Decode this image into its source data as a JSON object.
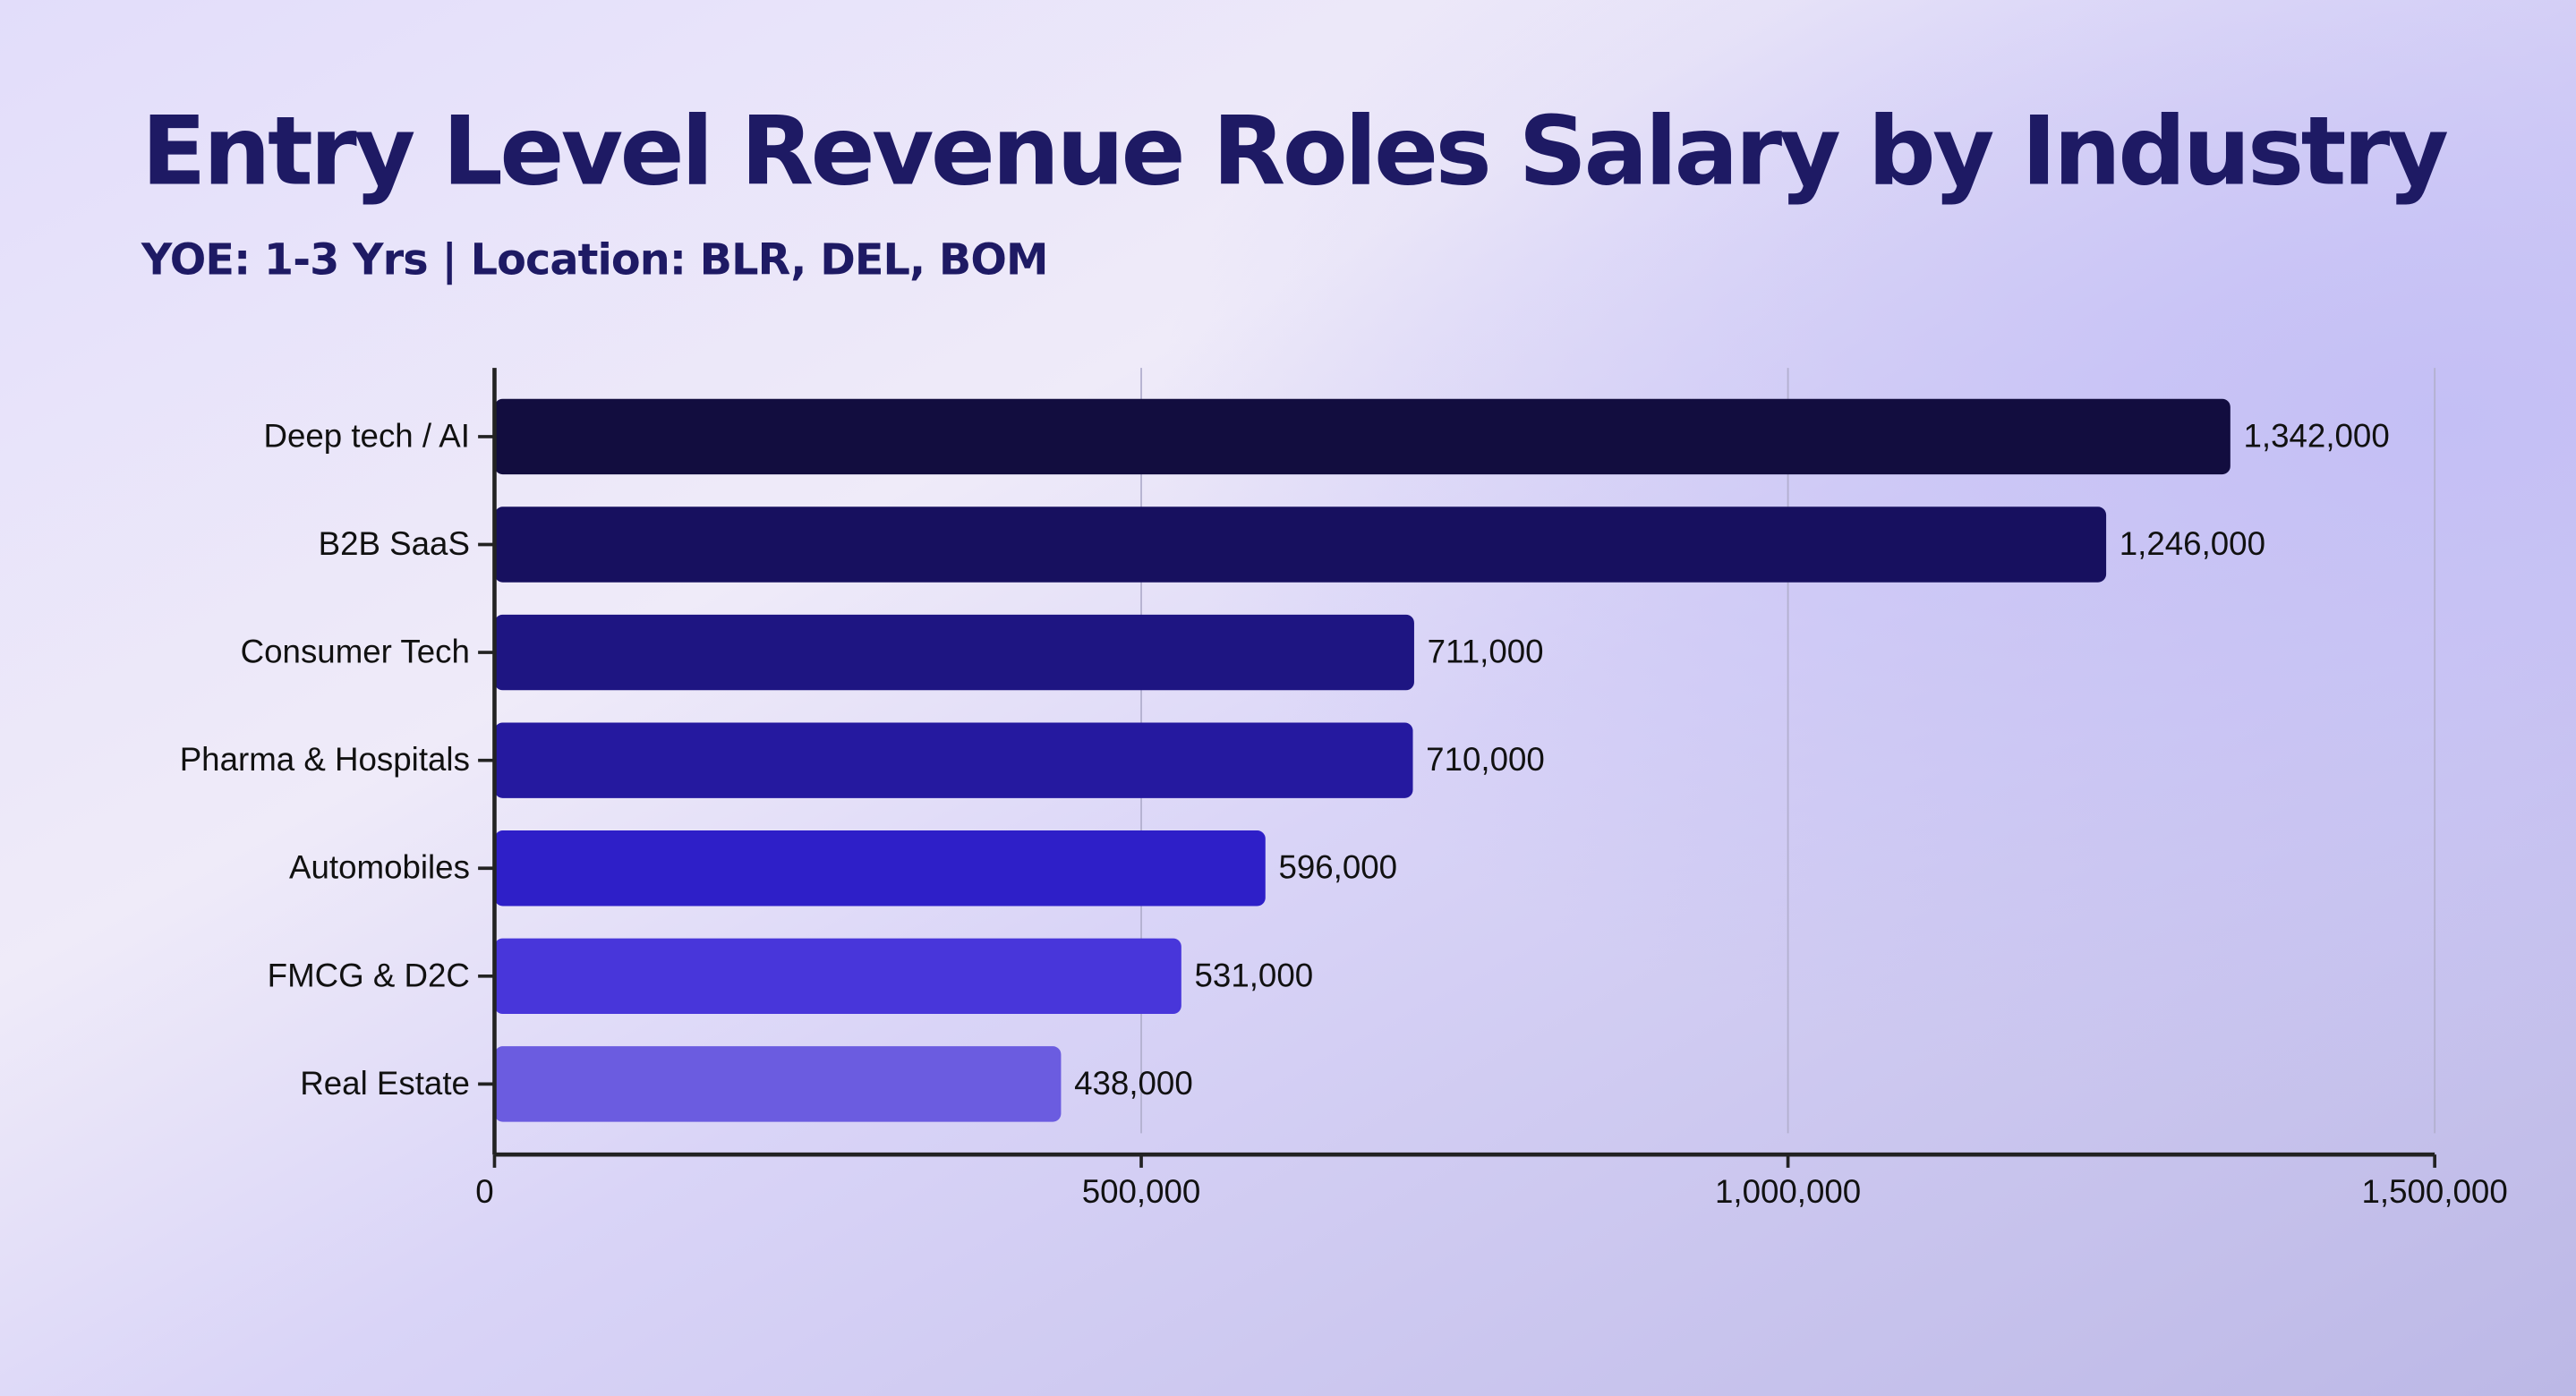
{
  "chart_data": {
    "type": "hbar",
    "title": "Entry Level Revenue Roles Salary by Industry",
    "subtitle": "YOE: 1-3 Yrs | Location: BLR, DEL, BOM",
    "categories": [
      "Deep tech / AI",
      "B2B SaaS",
      "Consumer Tech",
      "Pharma & Hospitals",
      "Automobiles",
      "FMCG & D2C",
      "Real Estate"
    ],
    "values": [
      1342000,
      1246000,
      711000,
      710000,
      596000,
      531000,
      438000
    ],
    "value_labels": [
      "1,342,000",
      "1,246,000",
      "711,000",
      "710,000",
      "596,000",
      "531,000",
      "438,000"
    ],
    "colors": [
      "#120d3f",
      "#17105f",
      "#1e1582",
      "#25199f",
      "#2e1fc8",
      "#4836da",
      "#6b5ce0"
    ],
    "xlim": [
      0,
      1500000
    ],
    "xticks": [
      0,
      {
        "value": 500000,
        "label": "500,000"
      },
      {
        "value": 1000000,
        "label": "1,000,000"
      },
      {
        "value": 1500000,
        "label": "1,500,000"
      }
    ],
    "grid": true
  }
}
